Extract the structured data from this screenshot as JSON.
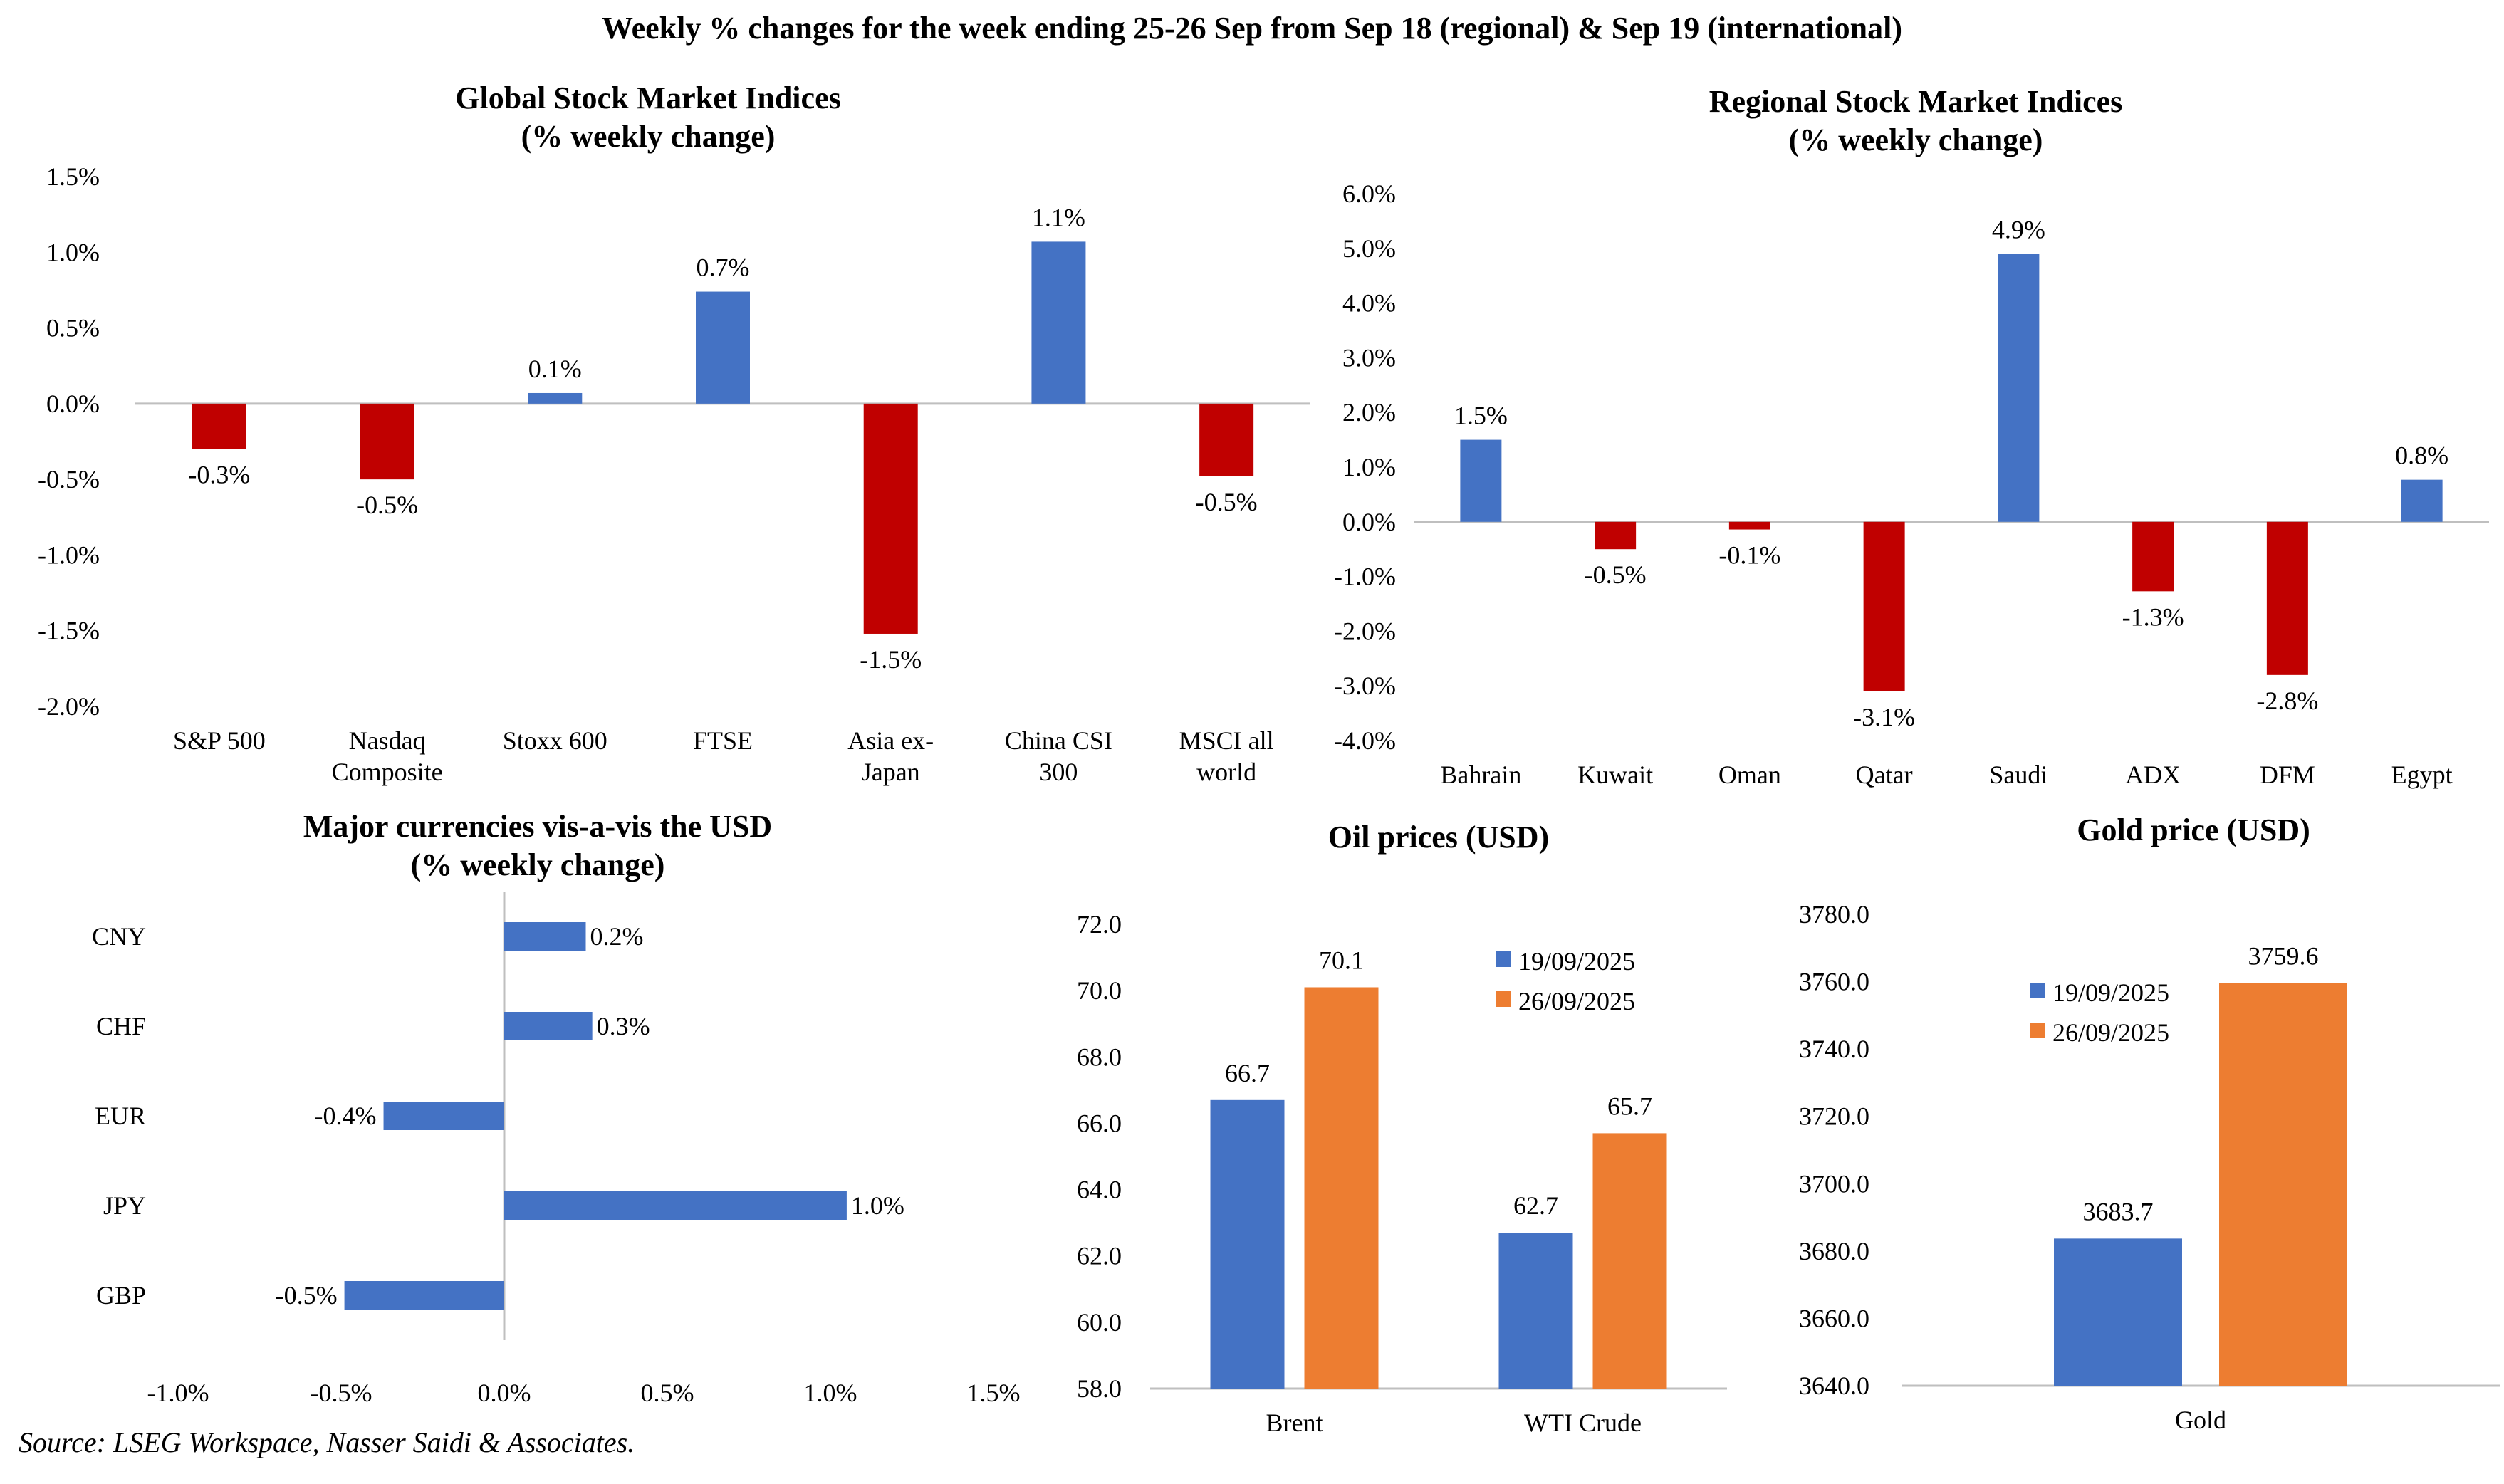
{
  "page_title": "Weekly % changes for the week ending 25-26 Sep from Sep 18 (regional) & Sep 19 (international)",
  "source_note": "Source: LSEG Workspace, Nasser Saidi & Associates.",
  "colors": {
    "positive": "#4472C4",
    "negative": "#C00000",
    "series_a": "#4472C4",
    "series_b": "#ED7D31",
    "axis": "#BFBFBF"
  },
  "chart_data": [
    {
      "id": "global",
      "type": "bar",
      "title": [
        "Global Stock Market Indices",
        "(% weekly change)"
      ],
      "categories": [
        [
          "S&P 500"
        ],
        [
          "Nasdaq",
          "Composite"
        ],
        [
          "Stoxx 600"
        ],
        [
          "FTSE"
        ],
        [
          "Asia ex-",
          "Japan"
        ],
        [
          "China CSI",
          "300"
        ],
        [
          "MSCI all",
          "world"
        ]
      ],
      "values": [
        -0.3,
        -0.5,
        0.07,
        0.74,
        -1.52,
        1.07,
        -0.48
      ],
      "labels": [
        "-0.3%",
        "-0.5%",
        "0.1%",
        "0.7%",
        "-1.5%",
        "1.1%",
        "-0.5%"
      ],
      "yticks": [
        "1.5%",
        "1.0%",
        "0.5%",
        "0.0%",
        "-0.5%",
        "-1.0%",
        "-1.5%",
        "-2.0%"
      ],
      "ylim": [
        -2.0,
        1.5
      ]
    },
    {
      "id": "regional",
      "type": "bar",
      "title": [
        "Regional Stock Market Indices",
        "(% weekly change)"
      ],
      "categories": [
        [
          "Bahrain"
        ],
        [
          "Kuwait"
        ],
        [
          "Oman"
        ],
        [
          "Qatar"
        ],
        [
          "Saudi"
        ],
        [
          "ADX"
        ],
        [
          "DFM"
        ],
        [
          "Egypt"
        ]
      ],
      "values": [
        1.5,
        -0.5,
        -0.14,
        -3.1,
        4.9,
        -1.27,
        -2.8,
        0.77
      ],
      "labels": [
        "1.5%",
        "-0.5%",
        "-0.1%",
        "-3.1%",
        "4.9%",
        "-1.3%",
        "-2.8%",
        "0.8%"
      ],
      "yticks": [
        "6.0%",
        "5.0%",
        "4.0%",
        "3.0%",
        "2.0%",
        "1.0%",
        "0.0%",
        "-1.0%",
        "-2.0%",
        "-3.0%",
        "-4.0%"
      ],
      "ylim": [
        -4.0,
        6.0
      ]
    },
    {
      "id": "currencies",
      "type": "bar",
      "orientation": "horizontal",
      "title": [
        "Major currencies vis-a-vis the USD",
        "(% weekly change)"
      ],
      "categories": [
        "CNY",
        "CHF",
        "EUR",
        "JPY",
        "GBP"
      ],
      "values": [
        0.25,
        0.27,
        -0.37,
        1.05,
        -0.49
      ],
      "labels": [
        "0.2%",
        "0.3%",
        "-0.4%",
        "1.0%",
        "-0.5%"
      ],
      "xticks": [
        "-1.0%",
        "-0.5%",
        "0.0%",
        "0.5%",
        "1.0%",
        "1.5%"
      ],
      "xlim": [
        -1.0,
        1.5
      ]
    },
    {
      "id": "oil",
      "type": "bar",
      "title": [
        "Oil prices (USD)"
      ],
      "categories": [
        "Brent",
        "WTI Crude"
      ],
      "series": [
        {
          "name": "19/09/2025",
          "values": [
            66.7,
            62.7
          ],
          "labels": [
            "66.7",
            "62.7"
          ]
        },
        {
          "name": "26/09/2025",
          "values": [
            70.1,
            65.7
          ],
          "labels": [
            "70.1",
            "65.7"
          ]
        }
      ],
      "yticks": [
        "72.0",
        "70.0",
        "68.0",
        "66.0",
        "64.0",
        "62.0",
        "60.0",
        "58.0"
      ],
      "ylim": [
        58.0,
        72.0
      ],
      "legend": "top-right"
    },
    {
      "id": "gold",
      "type": "bar",
      "title": [
        "Gold price (USD)"
      ],
      "categories": [
        "Gold"
      ],
      "series": [
        {
          "name": "19/09/2025",
          "values": [
            3683.7
          ],
          "labels": [
            "3683.7"
          ]
        },
        {
          "name": "26/09/2025",
          "values": [
            3759.6
          ],
          "labels": [
            "3759.6"
          ]
        }
      ],
      "yticks": [
        "3780.0",
        "3760.0",
        "3740.0",
        "3720.0",
        "3700.0",
        "3680.0",
        "3660.0",
        "3640.0"
      ],
      "ylim": [
        3640.0,
        3780.0
      ],
      "legend": "top-left"
    }
  ]
}
